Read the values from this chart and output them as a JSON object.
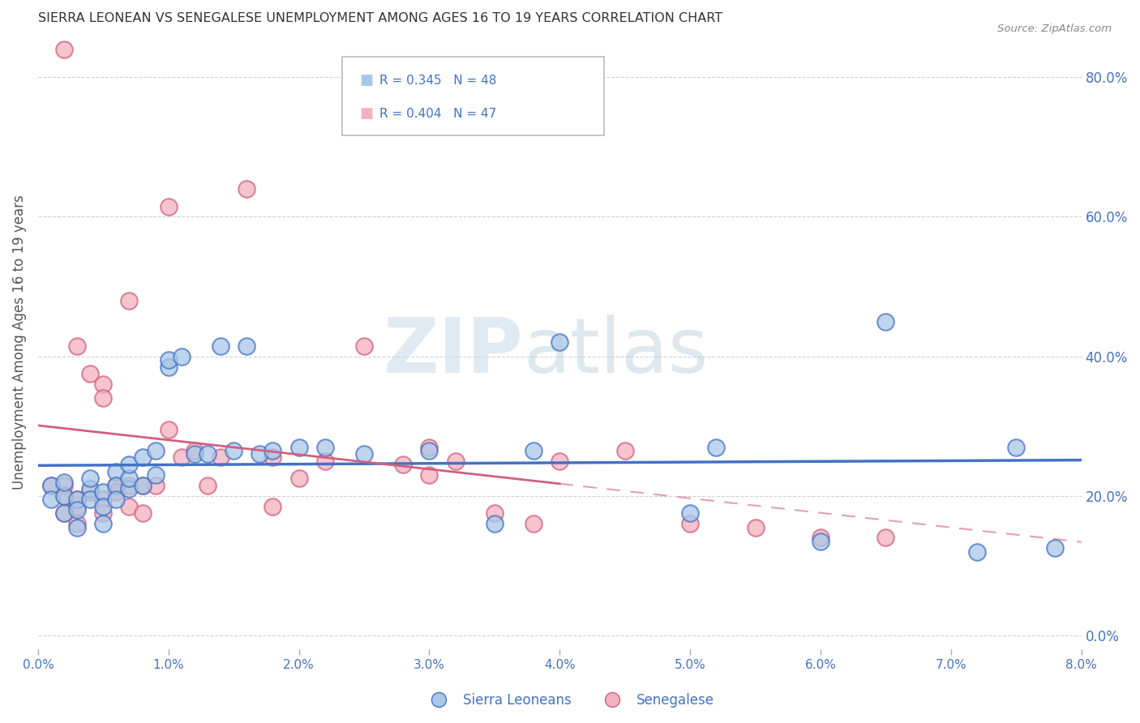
{
  "title": "SIERRA LEONEAN VS SENEGALESE UNEMPLOYMENT AMONG AGES 16 TO 19 YEARS CORRELATION CHART",
  "source": "Source: ZipAtlas.com",
  "ylabel": "Unemployment Among Ages 16 to 19 years",
  "xlim": [
    0.0,
    0.08
  ],
  "ylim": [
    -0.02,
    0.86
  ],
  "xticks": [
    0.0,
    0.01,
    0.02,
    0.03,
    0.04,
    0.05,
    0.06,
    0.07,
    0.08
  ],
  "xticklabels": [
    "0.0%",
    "1.0%",
    "2.0%",
    "3.0%",
    "4.0%",
    "5.0%",
    "6.0%",
    "7.0%",
    "8.0%"
  ],
  "yticks_right": [
    0.0,
    0.2,
    0.4,
    0.6,
    0.8
  ],
  "yticklabels_right": [
    "0.0%",
    "20.0%",
    "40.0%",
    "60.0%",
    "80.0%"
  ],
  "blue_face": "#a8c8e8",
  "blue_edge": "#4472c4",
  "pink_face": "#f4b0c0",
  "pink_edge": "#d06080",
  "blue_line": "#4472c4",
  "pink_line": "#d06080",
  "legend_r_blue": "R = 0.345",
  "legend_n_blue": "N = 48",
  "legend_r_pink": "R = 0.404",
  "legend_n_pink": "N = 47",
  "grid_color": "#cccccc",
  "bg_color": "#ffffff",
  "title_color": "#333333",
  "axis_label_color": "#4472c4",
  "sierra_x": [
    0.001,
    0.001,
    0.002,
    0.002,
    0.002,
    0.003,
    0.003,
    0.003,
    0.004,
    0.004,
    0.004,
    0.005,
    0.005,
    0.005,
    0.006,
    0.006,
    0.006,
    0.007,
    0.007,
    0.007,
    0.008,
    0.008,
    0.009,
    0.009,
    0.01,
    0.01,
    0.011,
    0.012,
    0.013,
    0.014,
    0.015,
    0.016,
    0.017,
    0.018,
    0.02,
    0.022,
    0.025,
    0.03,
    0.035,
    0.038,
    0.04,
    0.05,
    0.052,
    0.06,
    0.065,
    0.072,
    0.075,
    0.078
  ],
  "sierra_y": [
    0.215,
    0.195,
    0.2,
    0.22,
    0.175,
    0.195,
    0.18,
    0.155,
    0.21,
    0.195,
    0.225,
    0.205,
    0.185,
    0.16,
    0.235,
    0.215,
    0.195,
    0.21,
    0.225,
    0.245,
    0.215,
    0.255,
    0.23,
    0.265,
    0.385,
    0.395,
    0.4,
    0.26,
    0.26,
    0.415,
    0.265,
    0.415,
    0.26,
    0.265,
    0.27,
    0.27,
    0.26,
    0.265,
    0.16,
    0.265,
    0.42,
    0.175,
    0.27,
    0.135,
    0.45,
    0.12,
    0.27,
    0.125
  ],
  "sene_x": [
    0.001,
    0.002,
    0.002,
    0.002,
    0.003,
    0.003,
    0.003,
    0.004,
    0.004,
    0.005,
    0.005,
    0.005,
    0.006,
    0.006,
    0.007,
    0.007,
    0.007,
    0.008,
    0.008,
    0.009,
    0.01,
    0.01,
    0.011,
    0.012,
    0.013,
    0.014,
    0.016,
    0.018,
    0.018,
    0.02,
    0.022,
    0.025,
    0.028,
    0.03,
    0.03,
    0.032,
    0.035,
    0.038,
    0.04,
    0.045,
    0.05,
    0.055,
    0.06,
    0.065,
    0.002,
    0.005,
    0.003
  ],
  "sene_y": [
    0.215,
    0.175,
    0.2,
    0.215,
    0.185,
    0.195,
    0.16,
    0.205,
    0.375,
    0.195,
    0.175,
    0.36,
    0.215,
    0.205,
    0.185,
    0.215,
    0.48,
    0.215,
    0.175,
    0.215,
    0.295,
    0.615,
    0.255,
    0.265,
    0.215,
    0.255,
    0.64,
    0.255,
    0.185,
    0.225,
    0.25,
    0.415,
    0.245,
    0.23,
    0.27,
    0.25,
    0.175,
    0.16,
    0.25,
    0.265,
    0.16,
    0.155,
    0.14,
    0.14,
    0.84,
    0.34,
    0.415
  ]
}
